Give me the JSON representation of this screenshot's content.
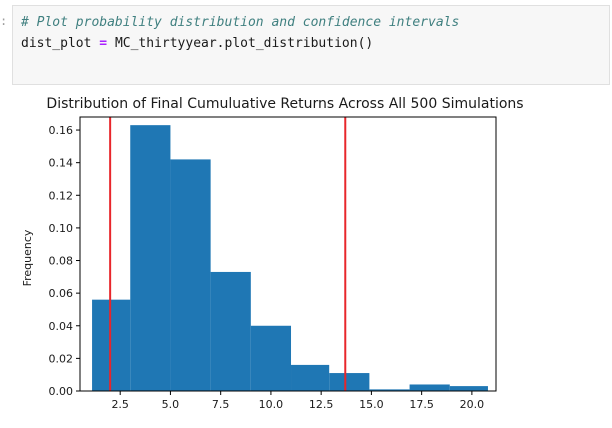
{
  "cell": {
    "prompt": ":",
    "comment": "# Plot probability distribution and confidence intervals",
    "var_name": "dist_plot",
    "operator": "=",
    "call": "MC_thirtyyear.plot_distribution()"
  },
  "chart_data": {
    "type": "bar",
    "title": "Distribution of Final Cumuluative Returns Across All 500 Simulations",
    "xlabel": "",
    "ylabel": "Frequency",
    "xlim": [
      0.5,
      21.2
    ],
    "ylim": [
      0,
      0.168
    ],
    "xticks": [
      2.5,
      5.0,
      7.5,
      10.0,
      12.5,
      15.0,
      17.5,
      20.0
    ],
    "xtick_labels": [
      "2.5",
      "5.0",
      "7.5",
      "10.0",
      "12.5",
      "15.0",
      "17.5",
      "20.0"
    ],
    "yticks": [
      0.0,
      0.02,
      0.04,
      0.06,
      0.08,
      0.1,
      0.12,
      0.14,
      0.16
    ],
    "ytick_labels": [
      "0.00",
      "0.02",
      "0.04",
      "0.06",
      "0.08",
      "0.10",
      "0.12",
      "0.14",
      "0.16"
    ],
    "bins": [
      {
        "x0": 1.1,
        "x1": 3.0,
        "value": 0.056
      },
      {
        "x0": 3.0,
        "x1": 5.0,
        "value": 0.163
      },
      {
        "x0": 5.0,
        "x1": 7.0,
        "value": 0.142
      },
      {
        "x0": 7.0,
        "x1": 9.0,
        "value": 0.073
      },
      {
        "x0": 9.0,
        "x1": 11.0,
        "value": 0.04
      },
      {
        "x0": 11.0,
        "x1": 12.9,
        "value": 0.016
      },
      {
        "x0": 12.9,
        "x1": 14.9,
        "value": 0.011
      },
      {
        "x0": 14.9,
        "x1": 16.9,
        "value": 0.001
      },
      {
        "x0": 16.9,
        "x1": 18.9,
        "value": 0.004
      },
      {
        "x0": 18.9,
        "x1": 20.8,
        "value": 0.003
      }
    ],
    "vlines": [
      2.0,
      13.7
    ],
    "bar_color": "#1f77b4",
    "vline_color": "#e8262b",
    "grid": false
  }
}
